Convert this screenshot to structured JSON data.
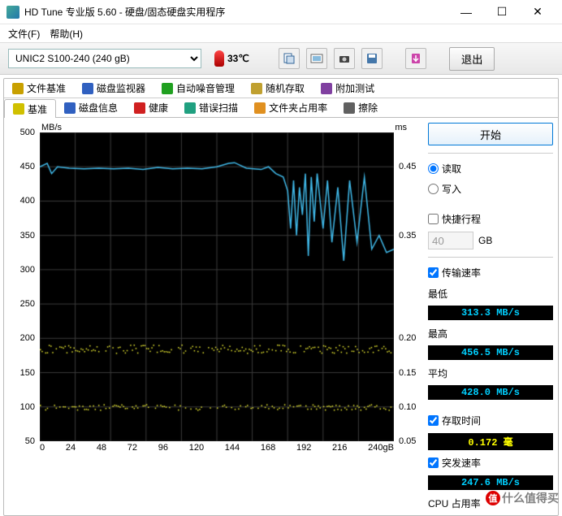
{
  "window": {
    "title": "HD Tune 专业版 5.60 - 硬盘/固态硬盘实用程序",
    "min": "—",
    "max": "☐",
    "close": "✕"
  },
  "menu": {
    "file": "文件(F)",
    "help": "帮助(H)"
  },
  "toolbar": {
    "drive": "UNIC2 S100-240 (240 gB)",
    "temp": "33℃",
    "exit": "退出"
  },
  "tabs_top": [
    {
      "icon": "#c8a000",
      "label": "文件基准"
    },
    {
      "icon": "#3060c0",
      "label": "磁盘监视器"
    },
    {
      "icon": "#20a020",
      "label": "自动噪音管理"
    },
    {
      "icon": "#c0a030",
      "label": "随机存取"
    },
    {
      "icon": "#8040a0",
      "label": "附加测试"
    }
  ],
  "tabs_bottom": [
    {
      "icon": "#d0c000",
      "label": "基准",
      "active": true
    },
    {
      "icon": "#3060c0",
      "label": "磁盘信息"
    },
    {
      "icon": "#d02020",
      "label": "健康"
    },
    {
      "icon": "#20a080",
      "label": "错误扫描"
    },
    {
      "icon": "#e09020",
      "label": "文件夹占用率"
    },
    {
      "icon": "#606060",
      "label": "擦除"
    }
  ],
  "chart": {
    "y_left_label": "MB/s",
    "y_right_label": "ms",
    "y_left_ticks": [
      500,
      450,
      400,
      350,
      300,
      250,
      200,
      150,
      100,
      50
    ],
    "y_right_ticks": [
      "",
      "0.45",
      "",
      "0.35",
      "",
      "",
      "0.20",
      "0.15",
      "0.10",
      "0.05"
    ],
    "y_range": [
      50,
      500
    ],
    "x_ticks": [
      "0",
      "24",
      "48",
      "72",
      "96",
      "120",
      "144",
      "168",
      "192",
      "216",
      "240gB"
    ],
    "x_range": [
      0,
      240
    ],
    "line_color": "#3fb8e8",
    "scatter_color": "#e8e830",
    "grid_color": "#3a3a3a",
    "bg": "#000000",
    "transfer_line": [
      [
        0,
        450
      ],
      [
        5,
        455
      ],
      [
        8,
        440
      ],
      [
        12,
        450
      ],
      [
        20,
        448
      ],
      [
        30,
        447
      ],
      [
        40,
        448
      ],
      [
        50,
        447
      ],
      [
        60,
        448
      ],
      [
        70,
        446
      ],
      [
        80,
        449
      ],
      [
        90,
        447
      ],
      [
        100,
        448
      ],
      [
        110,
        447
      ],
      [
        120,
        450
      ],
      [
        128,
        455
      ],
      [
        132,
        456
      ],
      [
        140,
        448
      ],
      [
        150,
        446
      ],
      [
        155,
        450
      ],
      [
        160,
        440
      ],
      [
        165,
        435
      ],
      [
        168,
        415
      ],
      [
        170,
        360
      ],
      [
        172,
        430
      ],
      [
        174,
        350
      ],
      [
        176,
        420
      ],
      [
        178,
        380
      ],
      [
        180,
        440
      ],
      [
        182,
        320
      ],
      [
        184,
        435
      ],
      [
        186,
        370
      ],
      [
        188,
        440
      ],
      [
        192,
        360
      ],
      [
        195,
        430
      ],
      [
        198,
        340
      ],
      [
        202,
        420
      ],
      [
        206,
        313
      ],
      [
        210,
        430
      ],
      [
        215,
        340
      ],
      [
        220,
        435
      ],
      [
        225,
        330
      ],
      [
        230,
        350
      ],
      [
        235,
        325
      ],
      [
        240,
        330
      ]
    ],
    "scatter_upper_y": 185,
    "scatter_lower_y": 100
  },
  "panel": {
    "start": "开始",
    "read": "读取",
    "write": "写入",
    "quick": "快捷行程",
    "gb_val": "40",
    "gb_unit": "GB",
    "transfer_rate": "传输速率",
    "min_label": "最低",
    "min_val": "313.3 MB/s",
    "max_label": "最高",
    "max_val": "456.5 MB/s",
    "avg_label": "平均",
    "avg_val": "428.0 MB/s",
    "access_label": "存取时间",
    "access_val": "0.172 毫",
    "burst_label": "突发速率",
    "burst_val": "247.6 MB/s",
    "cpu_label": "CPU 占用率",
    "colors": {
      "cyan": "#00d0ff",
      "yellow": "#ffff00"
    }
  },
  "watermark": "什么值得买"
}
